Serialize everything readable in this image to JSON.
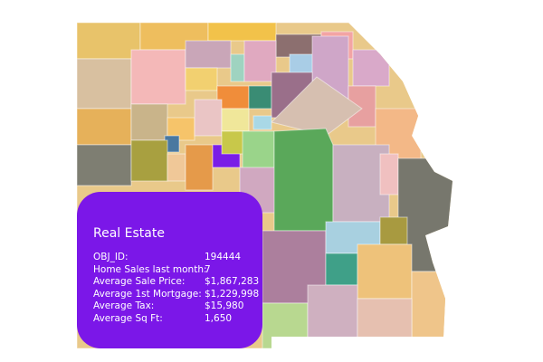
{
  "popup": {
    "title": "Real Estate",
    "rows": [
      {
        "label": "OBJ_ID:",
        "value": "194444"
      },
      {
        "label": "Home Sales last month:",
        "value": "7"
      },
      {
        "label": "Average Sale Price:",
        "value": "$1,867,283"
      },
      {
        "label": "Average 1st Mortgage:",
        "value": "$1,229,998"
      },
      {
        "label": "Average Tax:",
        "value": "$15,980"
      },
      {
        "label": "Average Sq Ft:",
        "value": "1,650"
      }
    ]
  }
}
